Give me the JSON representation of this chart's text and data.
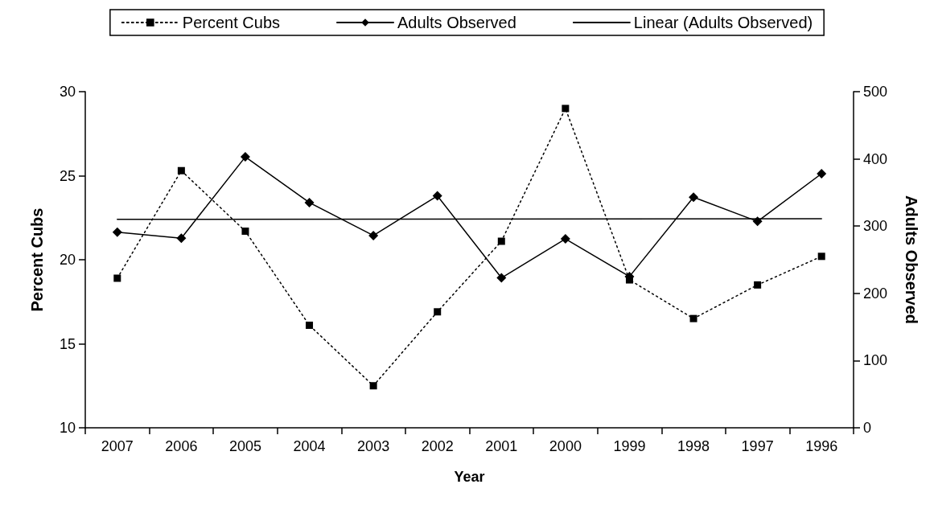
{
  "chart_data": {
    "type": "line",
    "xlabel": "Year",
    "ylabel": "Percent Cubs",
    "y2label": "Adults Observed",
    "categories": [
      "2007",
      "2006",
      "2005",
      "2004",
      "2003",
      "2002",
      "2001",
      "2000",
      "1999",
      "1998",
      "1997",
      "1996"
    ],
    "series": [
      {
        "name": "Percent Cubs",
        "color": "#000000",
        "marker": "square",
        "line_style": "dotted",
        "values": [
          18.9,
          25.3,
          21.7,
          16.1,
          12.5,
          16.9,
          21.1,
          29.0,
          18.8,
          16.5,
          18.5,
          20.2
        ]
      },
      {
        "name": "Adults Observed",
        "color": "#000000",
        "marker": "diamond",
        "line_style": "solid",
        "axis": "y2",
        "values": [
          291,
          282,
          403,
          335,
          286,
          345,
          223,
          281,
          225,
          343,
          307,
          378
        ]
      },
      {
        "name": "Linear (Adults Observed)",
        "color": "#000000",
        "marker": "none",
        "line_style": "solid",
        "axis": "y2",
        "values": [
          310,
          null,
          null,
          null,
          null,
          null,
          null,
          null,
          null,
          null,
          null,
          311
        ]
      }
    ],
    "ylim": [
      10,
      30
    ],
    "yticks": [
      10,
      15,
      20,
      25,
      30
    ],
    "y2lim": [
      0,
      500
    ],
    "y2ticks": [
      0,
      100,
      200,
      300,
      400,
      500
    ],
    "grid": false,
    "legend": "top"
  }
}
